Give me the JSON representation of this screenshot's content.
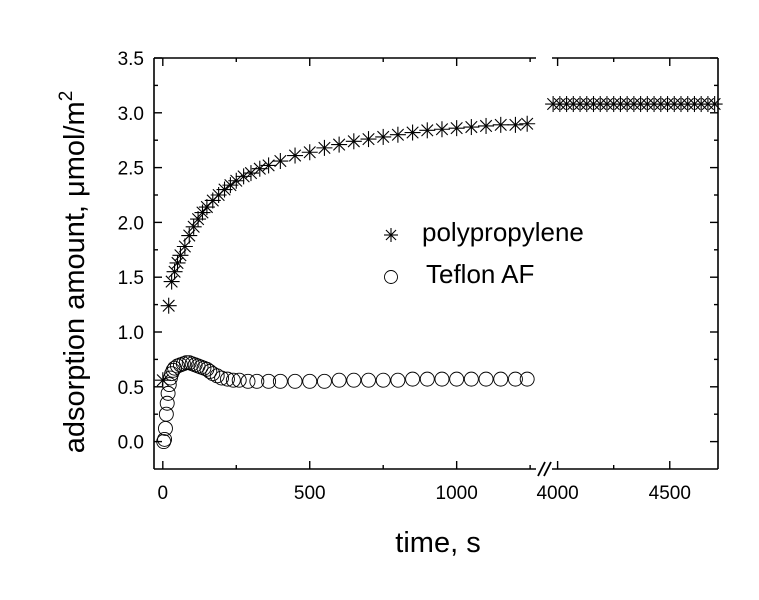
{
  "chart_data": {
    "type": "scatter",
    "title": "",
    "xlabel": "time, s",
    "ylabel_main": "adsorption amount, μmol/m",
    "ylabel_sup": "2",
    "axis_break": true,
    "xlim_left": [
      -30,
      1270
    ],
    "xlim_right": [
      3975,
      4715
    ],
    "ylim": [
      -0.25,
      3.5
    ],
    "xticks_left": [
      0,
      500,
      1000
    ],
    "xticks_right": [
      4000,
      4500
    ],
    "xtick_labels_left": [
      "0",
      "500",
      "1000"
    ],
    "xtick_labels_right": [
      "4000",
      "4500"
    ],
    "yticks": [
      0.0,
      0.5,
      1.0,
      1.5,
      2.0,
      2.5,
      3.0,
      3.5
    ],
    "ytick_labels": [
      "0.0",
      "0.5",
      "1.0",
      "1.5",
      "2.0",
      "2.5",
      "3.0",
      "3.5"
    ],
    "grid": false,
    "legend_position": "center-right",
    "series": [
      {
        "name": "polypropylene",
        "marker": "asterisk",
        "color": "#000000",
        "left_points": [
          [
            0,
            0.56
          ],
          [
            20,
            1.24
          ],
          [
            30,
            1.46
          ],
          [
            40,
            1.55
          ],
          [
            50,
            1.63
          ],
          [
            60,
            1.7
          ],
          [
            75,
            1.78
          ],
          [
            90,
            1.88
          ],
          [
            105,
            1.96
          ],
          [
            120,
            2.03
          ],
          [
            135,
            2.09
          ],
          [
            150,
            2.14
          ],
          [
            170,
            2.2
          ],
          [
            190,
            2.25
          ],
          [
            210,
            2.3
          ],
          [
            230,
            2.34
          ],
          [
            250,
            2.38
          ],
          [
            275,
            2.42
          ],
          [
            300,
            2.45
          ],
          [
            330,
            2.49
          ],
          [
            360,
            2.52
          ],
          [
            400,
            2.56
          ],
          [
            450,
            2.61
          ],
          [
            500,
            2.64
          ],
          [
            550,
            2.68
          ],
          [
            600,
            2.71
          ],
          [
            650,
            2.74
          ],
          [
            700,
            2.76
          ],
          [
            750,
            2.78
          ],
          [
            800,
            2.8
          ],
          [
            850,
            2.82
          ],
          [
            900,
            2.84
          ],
          [
            950,
            2.85
          ],
          [
            1000,
            2.86
          ],
          [
            1050,
            2.87
          ],
          [
            1100,
            2.88
          ],
          [
            1150,
            2.89
          ],
          [
            1200,
            2.89
          ],
          [
            1240,
            2.9
          ]
        ],
        "right_points": [
          [
            3980,
            3.08
          ],
          [
            4010,
            3.08
          ],
          [
            4040,
            3.08
          ],
          [
            4070,
            3.08
          ],
          [
            4100,
            3.08
          ],
          [
            4130,
            3.08
          ],
          [
            4160,
            3.08
          ],
          [
            4190,
            3.08
          ],
          [
            4220,
            3.08
          ],
          [
            4250,
            3.08
          ],
          [
            4280,
            3.08
          ],
          [
            4310,
            3.08
          ],
          [
            4340,
            3.08
          ],
          [
            4370,
            3.08
          ],
          [
            4400,
            3.08
          ],
          [
            4430,
            3.08
          ],
          [
            4460,
            3.08
          ],
          [
            4490,
            3.08
          ],
          [
            4520,
            3.08
          ],
          [
            4550,
            3.08
          ],
          [
            4580,
            3.08
          ],
          [
            4610,
            3.08
          ],
          [
            4640,
            3.08
          ],
          [
            4670,
            3.08
          ],
          [
            4700,
            3.08
          ]
        ]
      },
      {
        "name": "Teflon AF",
        "marker": "open-circle",
        "color": "#000000",
        "left_points": [
          [
            3,
            0.0
          ],
          [
            6,
            0.02
          ],
          [
            9,
            0.12
          ],
          [
            12,
            0.25
          ],
          [
            15,
            0.35
          ],
          [
            18,
            0.44
          ],
          [
            22,
            0.52
          ],
          [
            26,
            0.58
          ],
          [
            30,
            0.62
          ],
          [
            35,
            0.65
          ],
          [
            40,
            0.67
          ],
          [
            50,
            0.69
          ],
          [
            60,
            0.7
          ],
          [
            70,
            0.71
          ],
          [
            80,
            0.72
          ],
          [
            90,
            0.72
          ],
          [
            100,
            0.71
          ],
          [
            110,
            0.7
          ],
          [
            120,
            0.69
          ],
          [
            130,
            0.68
          ],
          [
            140,
            0.67
          ],
          [
            150,
            0.66
          ],
          [
            160,
            0.64
          ],
          [
            170,
            0.62
          ],
          [
            185,
            0.6
          ],
          [
            200,
            0.58
          ],
          [
            220,
            0.57
          ],
          [
            240,
            0.56
          ],
          [
            260,
            0.56
          ],
          [
            290,
            0.55
          ],
          [
            320,
            0.55
          ],
          [
            360,
            0.55
          ],
          [
            400,
            0.55
          ],
          [
            450,
            0.55
          ],
          [
            500,
            0.55
          ],
          [
            550,
            0.55
          ],
          [
            600,
            0.56
          ],
          [
            650,
            0.56
          ],
          [
            700,
            0.56
          ],
          [
            750,
            0.56
          ],
          [
            800,
            0.56
          ],
          [
            850,
            0.57
          ],
          [
            900,
            0.57
          ],
          [
            950,
            0.57
          ],
          [
            1000,
            0.57
          ],
          [
            1050,
            0.57
          ],
          [
            1100,
            0.57
          ],
          [
            1150,
            0.57
          ],
          [
            1200,
            0.57
          ],
          [
            1240,
            0.57
          ]
        ]
      }
    ]
  }
}
